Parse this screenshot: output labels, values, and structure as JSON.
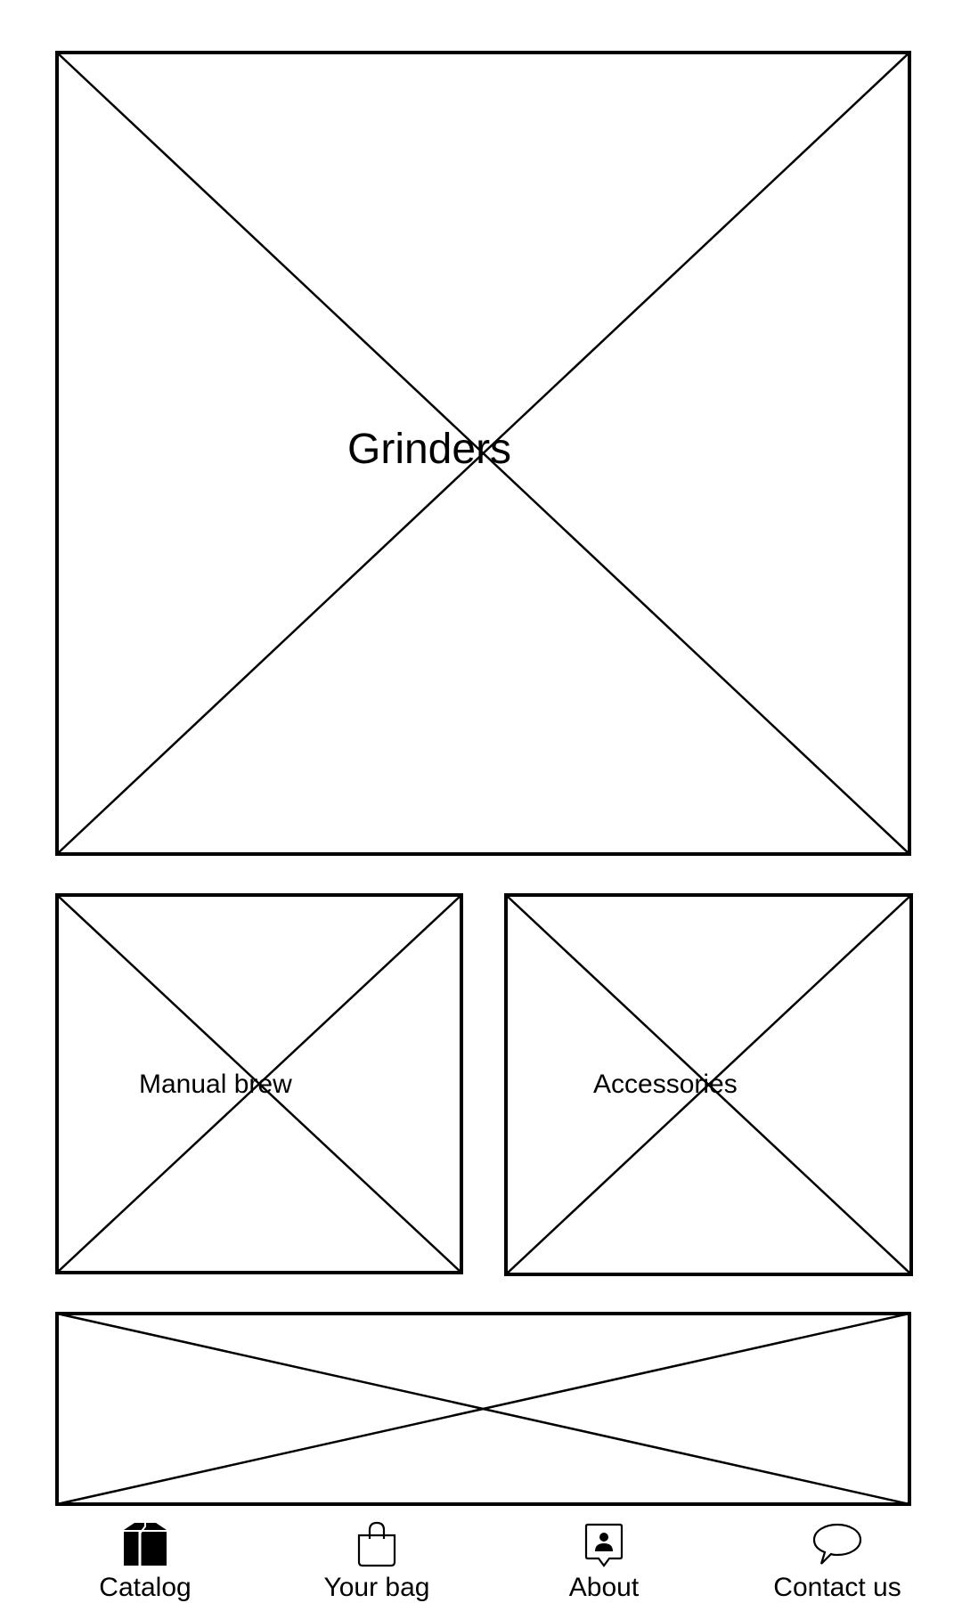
{
  "tiles": {
    "grinders": {
      "label": "Grinders"
    },
    "manual_brew": {
      "label": "Manual brew"
    },
    "accessories": {
      "label": "Accessories"
    },
    "banner": {
      "label": ""
    }
  },
  "bottom_nav": {
    "items": [
      {
        "label": "Catalog",
        "icon": "box-icon"
      },
      {
        "label": "Your bag",
        "icon": "shopping-bag-icon"
      },
      {
        "label": "About",
        "icon": "person-badge-icon"
      },
      {
        "label": "Contact us",
        "icon": "speech-bubble-icon"
      }
    ]
  },
  "colors": {
    "background": "#ffffff",
    "stroke": "#000000"
  }
}
